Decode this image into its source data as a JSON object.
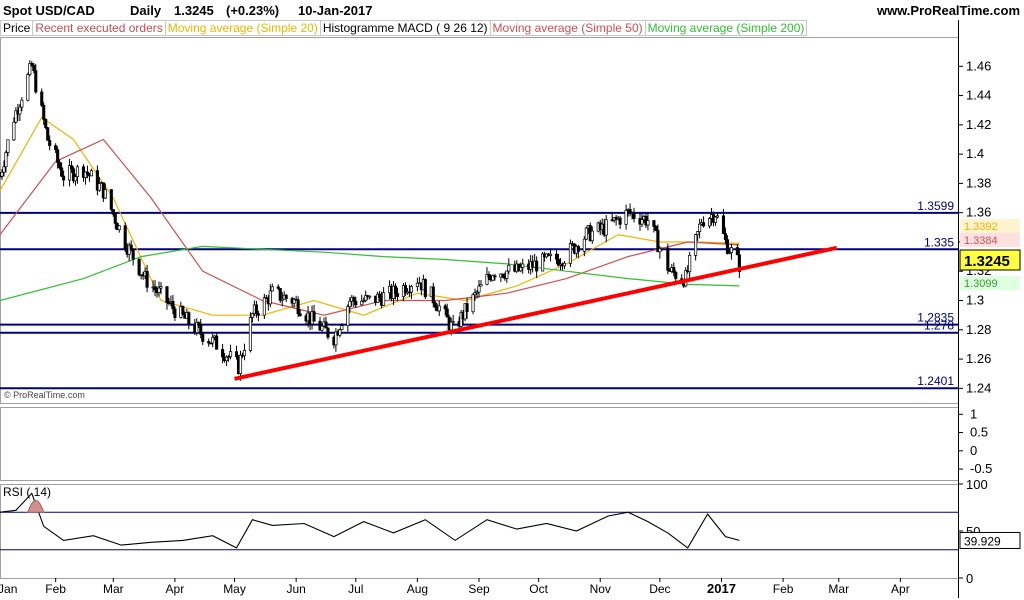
{
  "header": {
    "instrument": "Spot USD/CAD",
    "period": "Daily",
    "last_value": "1.3245",
    "change": "(+0.23%)",
    "date": "10-Jan-2017",
    "site": "www.ProRealTime.com"
  },
  "legend": [
    {
      "label": "Price",
      "color": "#000000"
    },
    {
      "label": "Recent executed orders",
      "color": "#c05050"
    },
    {
      "label": "Moving average (Simple 20)",
      "color": "#f0b400"
    },
    {
      "label": "Histogramme MACD ( 9 26 12)",
      "color": "#000000"
    },
    {
      "label": "Moving average (Simple 50)",
      "color": "#d05050"
    },
    {
      "label": "Moving average (Simple 200)",
      "color": "#30c030"
    }
  ],
  "watermark": "© ProRealTime.com",
  "chart_data": [
    {
      "type": "candlestick",
      "title": "Spot USD/CAD Daily",
      "ylim": [
        1.23,
        1.48
      ],
      "y_ticks": [
        "1.46",
        "1.44",
        "1.42",
        "1.4",
        "1.38",
        "1.36",
        "1.34",
        "1.32",
        "1.3",
        "1.28",
        "1.26",
        "1.24"
      ],
      "x_months": [
        "Jan",
        "Feb",
        "Mar",
        "Apr",
        "May",
        "Jun",
        "Jul",
        "Aug",
        "Sep",
        "Oct",
        "Nov",
        "Dec",
        "2017",
        "Feb",
        "Mar",
        "Apr"
      ],
      "x_range": [
        "2016-01-04",
        "2017-04-30"
      ],
      "last_price": 1.3245,
      "close_series": {
        "dates": [
          "2016-01-04",
          "2016-01-11",
          "2016-01-20",
          "2016-01-28",
          "2016-02-05",
          "2016-02-15",
          "2016-02-25",
          "2016-03-07",
          "2016-03-17",
          "2016-03-31",
          "2016-04-12",
          "2016-04-22",
          "2016-05-03",
          "2016-05-10",
          "2016-05-20",
          "2016-05-31",
          "2016-06-10",
          "2016-06-20",
          "2016-06-28",
          "2016-07-08",
          "2016-07-20",
          "2016-08-01",
          "2016-08-10",
          "2016-08-19",
          "2016-08-31",
          "2016-09-08",
          "2016-09-20",
          "2016-09-30",
          "2016-10-14",
          "2016-10-25",
          "2016-11-04",
          "2016-11-15",
          "2016-11-25",
          "2016-12-06",
          "2016-12-14",
          "2016-12-22",
          "2016-12-29",
          "2017-01-03",
          "2017-01-10"
        ],
        "values": [
          1.385,
          1.425,
          1.46,
          1.41,
          1.385,
          1.39,
          1.375,
          1.34,
          1.315,
          1.295,
          1.28,
          1.27,
          1.255,
          1.29,
          1.305,
          1.3,
          1.285,
          1.275,
          1.3,
          1.3,
          1.305,
          1.315,
          1.3,
          1.28,
          1.305,
          1.32,
          1.32,
          1.325,
          1.33,
          1.345,
          1.35,
          1.36,
          1.355,
          1.32,
          1.315,
          1.355,
          1.36,
          1.34,
          1.3245
        ]
      },
      "moving_averages": [
        {
          "name": "Moving average (Simple 20)",
          "color": "#f0b400",
          "last": 1.3392,
          "dates": [
            "2016-01-04",
            "2016-01-25",
            "2016-02-10",
            "2016-03-01",
            "2016-03-25",
            "2016-04-20",
            "2016-05-15",
            "2016-06-10",
            "2016-07-05",
            "2016-08-01",
            "2016-08-25",
            "2016-09-20",
            "2016-10-15",
            "2016-11-10",
            "2016-12-01",
            "2016-12-20",
            "2017-01-10"
          ],
          "values": [
            1.375,
            1.425,
            1.41,
            1.37,
            1.3,
            1.29,
            1.29,
            1.3,
            1.29,
            1.305,
            1.3,
            1.31,
            1.325,
            1.345,
            1.34,
            1.34,
            1.339
          ]
        },
        {
          "name": "Moving average (Simple 50)",
          "color": "#d05050",
          "last": 1.3384,
          "dates": [
            "2016-01-04",
            "2016-02-01",
            "2016-02-25",
            "2016-03-20",
            "2016-04-15",
            "2016-05-15",
            "2016-06-15",
            "2016-07-15",
            "2016-08-15",
            "2016-09-15",
            "2016-10-15",
            "2016-11-15",
            "2016-12-15",
            "2017-01-10"
          ],
          "values": [
            1.345,
            1.395,
            1.41,
            1.37,
            1.32,
            1.3,
            1.29,
            1.3,
            1.3,
            1.305,
            1.315,
            1.33,
            1.34,
            1.338
          ]
        },
        {
          "name": "Moving average (Simple 200)",
          "color": "#30c030",
          "last": 1.3099,
          "dates": [
            "2016-01-04",
            "2016-02-15",
            "2016-03-15",
            "2016-04-15",
            "2016-05-15",
            "2016-06-15",
            "2016-07-15",
            "2016-08-15",
            "2016-09-15",
            "2016-10-15",
            "2016-11-15",
            "2016-12-15",
            "2017-01-10"
          ],
          "values": [
            1.3,
            1.315,
            1.33,
            1.337,
            1.335,
            1.333,
            1.33,
            1.328,
            1.325,
            1.32,
            1.315,
            1.311,
            1.31
          ]
        }
      ],
      "horizontal_levels": [
        {
          "value": 1.3599,
          "label": "1.3599"
        },
        {
          "value": 1.335,
          "label": "1.335"
        },
        {
          "value": 1.2835,
          "label": "1.2835"
        },
        {
          "value": 1.278,
          "label": "1.278"
        },
        {
          "value": 1.2401,
          "label": "1.2401"
        }
      ],
      "trendline": {
        "color": "#ff0000",
        "start": {
          "date": "2016-05-01",
          "value": 1.2465
        },
        "end": {
          "date": "2017-02-28",
          "value": 1.336
        }
      },
      "value_labels": [
        "1.3392",
        "1.3384",
        "1.3245",
        "1.3099"
      ]
    },
    {
      "type": "histogram",
      "title": "Histogramme MACD ( 9 26 12)",
      "ylim": [
        -0.8,
        1.2
      ],
      "y_ticks": [
        "1",
        "0.5",
        "0",
        "-0.5"
      ],
      "values": []
    },
    {
      "type": "line",
      "title": "RSI ( 14)",
      "ylim": [
        0,
        100
      ],
      "y_ticks": [
        "100",
        "50",
        "0"
      ],
      "levels": [
        70,
        30
      ],
      "last": "39.929",
      "dates": [
        "2016-01-04",
        "2016-01-12",
        "2016-01-20",
        "2016-01-26",
        "2016-02-05",
        "2016-02-20",
        "2016-03-05",
        "2016-03-20",
        "2016-04-05",
        "2016-04-20",
        "2016-05-02",
        "2016-05-10",
        "2016-05-20",
        "2016-06-05",
        "2016-06-20",
        "2016-07-05",
        "2016-07-20",
        "2016-08-05",
        "2016-08-20",
        "2016-09-05",
        "2016-09-20",
        "2016-10-05",
        "2016-10-20",
        "2016-11-05",
        "2016-11-15",
        "2016-11-25",
        "2016-12-05",
        "2016-12-15",
        "2016-12-25",
        "2017-01-03",
        "2017-01-10"
      ],
      "values": [
        70,
        72,
        90,
        55,
        40,
        45,
        35,
        38,
        40,
        45,
        32,
        62,
        56,
        58,
        44,
        60,
        48,
        62,
        40,
        62,
        52,
        58,
        50,
        66,
        70,
        60,
        48,
        32,
        68,
        44,
        40
      ]
    }
  ]
}
